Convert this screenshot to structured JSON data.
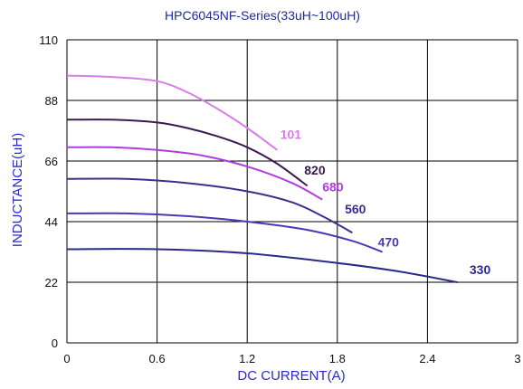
{
  "chart_data": {
    "type": "line",
    "title": "HPC6045NF-Series(33uH~100uH)",
    "xlabel": "DC CURRENT(A)",
    "ylabel": "INDUCTANCE(uH)",
    "xlim": [
      0,
      3
    ],
    "ylim": [
      0,
      110
    ],
    "xticks": [
      "0",
      "0.6",
      "1.2",
      "1.8",
      "2.4",
      "3"
    ],
    "yticks": [
      "0",
      "22",
      "44",
      "66",
      "88",
      "110"
    ],
    "grid": true,
    "series": [
      {
        "name": "101",
        "color": "#d67ee6",
        "x": [
          0,
          0.3,
          0.6,
          0.8,
          1.0,
          1.2,
          1.4
        ],
        "y": [
          97,
          96.5,
          95,
          91,
          85,
          78,
          70
        ]
      },
      {
        "name": "820",
        "color": "#3a1a4e",
        "x": [
          0,
          0.3,
          0.6,
          0.8,
          1.0,
          1.2,
          1.4,
          1.6
        ],
        "y": [
          81,
          81,
          80,
          78,
          75,
          71,
          65,
          57
        ]
      },
      {
        "name": "680",
        "color": "#b03be0",
        "x": [
          0,
          0.3,
          0.6,
          0.9,
          1.2,
          1.5,
          1.7
        ],
        "y": [
          71,
          71,
          70,
          68,
          64,
          58,
          52
        ]
      },
      {
        "name": "560",
        "color": "#3a2e8e",
        "x": [
          0,
          0.4,
          0.8,
          1.2,
          1.5,
          1.7,
          1.9
        ],
        "y": [
          59.5,
          59.5,
          58,
          55,
          51,
          46,
          40
        ]
      },
      {
        "name": "470",
        "color": "#5036b4",
        "x": [
          0,
          0.4,
          0.8,
          1.2,
          1.6,
          1.9,
          2.1
        ],
        "y": [
          47,
          47,
          46,
          44,
          41,
          37,
          33
        ]
      },
      {
        "name": "330",
        "color": "#2a2a8a",
        "x": [
          0,
          0.6,
          1.2,
          1.8,
          2.2,
          2.6
        ],
        "y": [
          34,
          34,
          32.5,
          29,
          26,
          22
        ]
      }
    ],
    "label_positions": {
      "101": [
        1.42,
        74
      ],
      "820": [
        1.58,
        61
      ],
      "680": [
        1.7,
        55
      ],
      "560": [
        1.85,
        47
      ],
      "470": [
        2.07,
        35
      ],
      "330": [
        2.68,
        25
      ]
    }
  }
}
